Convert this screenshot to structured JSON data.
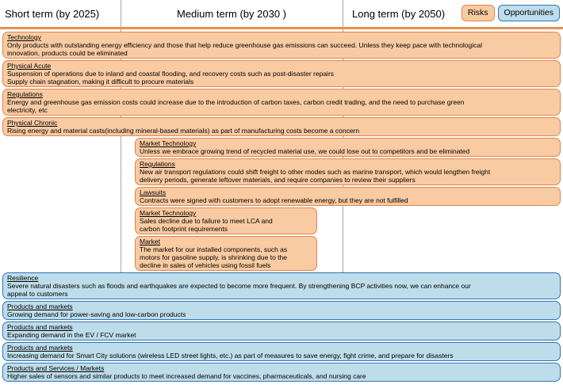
{
  "header": {
    "columns": [
      {
        "label": "Short term (by 2025)"
      },
      {
        "label": "Medium term (by 2030 )"
      },
      {
        "label": "Long term (by 2050)"
      }
    ],
    "legend": [
      {
        "label": "Risks"
      },
      {
        "label": "Opportunities"
      }
    ]
  },
  "colors": {
    "risk_fill": "#F9CBA3",
    "risk_border": "#E2834B",
    "opportunity_fill": "#BEDDEB",
    "opportunity_border": "#2E75B6",
    "column_divider": "#A6A6A6",
    "header_rule": "#E78F52"
  },
  "risks": {
    "short_term": [
      {
        "category": "Technology",
        "text": "Only products with outstanding energy efficiency and those that help reduce greenhouse gas emissions can succeed. Unless they keep pace with technological\ninnovation, products could be eliminated"
      },
      {
        "category": "Physical Acute",
        "text": "Suspension of operations due to inland and coastal flooding, and recovery costs such as post-disaster repairs\nSupply chain stagnation, making it difficult to procure materials"
      },
      {
        "category": "Regulations",
        "text": "Energy and greenhouse gas emission costs could increase due to the introduction of carbon taxes, carbon credit trading, and the need to purchase green\nelectricity, etc"
      },
      {
        "category": "Physical Chronic",
        "text": "Rising energy and material casts(including mineral-based materials) as part of manufacturing costs become a concern"
      }
    ],
    "medium_term_wide": [
      {
        "category": "Market Technology",
        "text": "Unless we embrace growing trend of recycled material use, we could lose out to competitors and be eliminated"
      },
      {
        "category": "Regulations",
        "text": "New air transport regulations could shift freight to other modes such as marine transport, which would lengthen freight\ndelivery periods, generate leftover materials, and require companies to review their suppliers"
      },
      {
        "category": "Lawsuits",
        "text": "Contracts were signed with customers to adopt renewable energy, but they are not fulfilled"
      }
    ],
    "medium_term_narrow": [
      {
        "category": "Market Technology",
        "text": "Sales decline due to failure to meet LCA and\ncarbon footprint requirements"
      },
      {
        "category": "Market",
        "text": "The market for our installed components, such as\nmotors for gasoline supply, is shrinking due to the\ndecline in sales of vehicles using fossil fuels"
      }
    ]
  },
  "opportunities": [
    {
      "category": "Resilience",
      "text": "Severe natural disasters such as floods and earthquakes are expected to become more frequent. By strengthening BCP activities now, we can enhance our\nappeal to customers"
    },
    {
      "category": "Products and markets",
      "text": "Growing demand for power-saving and low-carbon products"
    },
    {
      "category": "Products and markets",
      "text": "Expanding demand in the EV / FCV market"
    },
    {
      "category": "Products and markets",
      "text": "Increasing demand for Smart City solutions (wireless LED street lights, etc.) as part of measures to save energy, fight crime, and prepare for disasters"
    },
    {
      "category": "Products and Services / Markets",
      "text": "Higher sales of sensors and similar products to meet increased demand for vaccines, pharmaceuticals, and nursing care"
    }
  ]
}
